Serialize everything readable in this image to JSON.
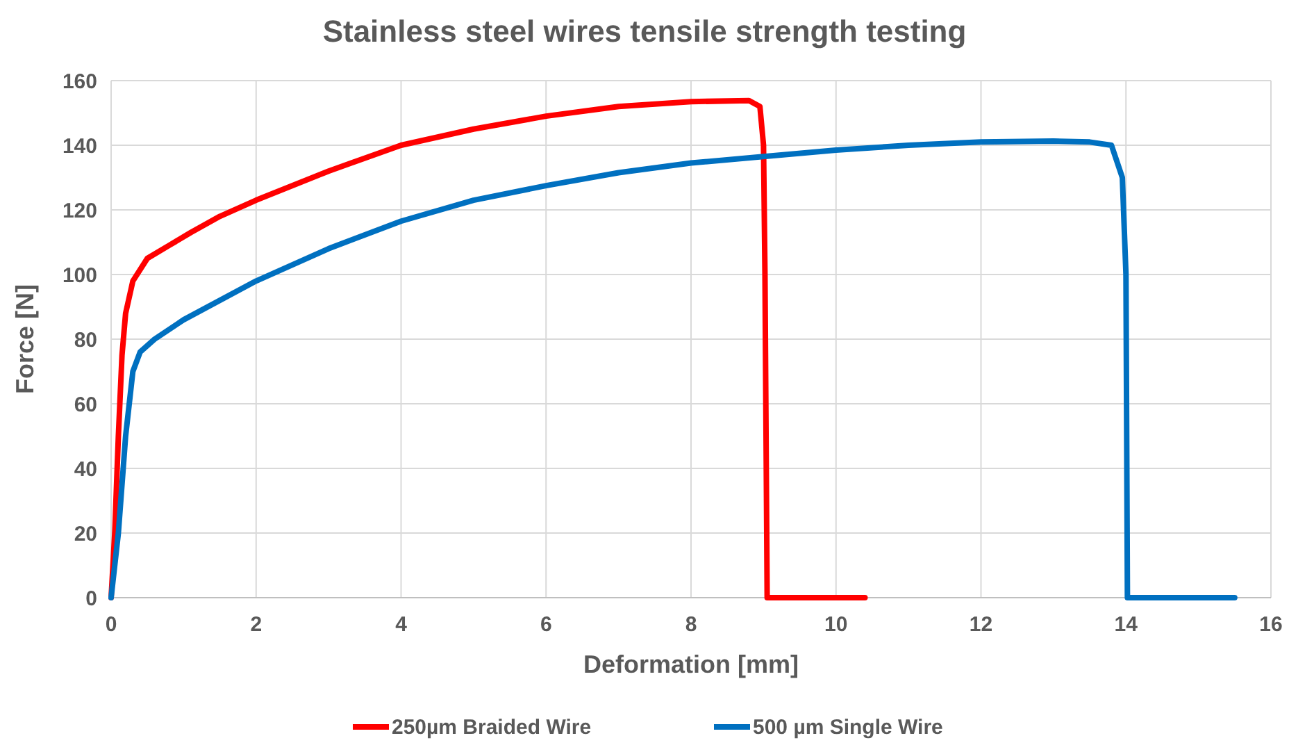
{
  "chart_data": {
    "type": "line",
    "title": "Stainless steel wires tensile strength testing",
    "xlabel": "Deformation [mm]",
    "ylabel": "Force [N]",
    "xlim": [
      0,
      16
    ],
    "xticks": [
      0,
      2,
      4,
      6,
      8,
      10,
      12,
      14,
      16
    ],
    "ylim": [
      0,
      160
    ],
    "yticks": [
      0,
      20,
      40,
      60,
      80,
      100,
      120,
      140,
      160
    ],
    "grid": true,
    "legend": "bottom",
    "marker": "none",
    "line_style": "solid",
    "series": [
      {
        "name": "250µm Braided Wire",
        "color": "#ff0000",
        "x": [
          0,
          0.05,
          0.1,
          0.15,
          0.2,
          0.3,
          0.5,
          0.8,
          1.1,
          1.5,
          2,
          3,
          4,
          5,
          6,
          7,
          8,
          8.8,
          8.95,
          9.0,
          9.02,
          9.05,
          10.4
        ],
        "values": [
          0,
          20,
          50,
          75,
          88,
          98,
          105,
          109,
          113,
          118,
          123,
          132,
          140,
          145,
          149,
          152,
          153.5,
          153.8,
          152,
          140,
          100,
          0,
          0
        ]
      },
      {
        "name": "500 µm Single Wire",
        "color": "#0070c0",
        "x": [
          0,
          0.1,
          0.2,
          0.3,
          0.4,
          0.6,
          1,
          2,
          3,
          4,
          5,
          6,
          7,
          8,
          9,
          10,
          11,
          12,
          13,
          13.5,
          13.8,
          13.95,
          14.0,
          14.02,
          15.5
        ],
        "values": [
          0,
          20,
          50,
          70,
          76,
          80,
          86,
          98,
          108,
          116.5,
          123,
          127.5,
          131.5,
          134.5,
          136.5,
          138.5,
          140,
          141,
          141.3,
          141,
          140,
          130,
          100,
          0,
          0
        ]
      }
    ]
  }
}
